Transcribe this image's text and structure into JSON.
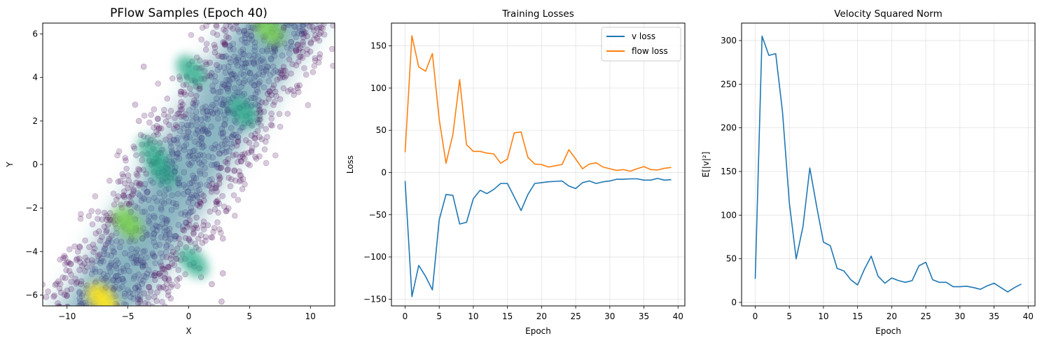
{
  "colors": {
    "blue": "#1f77b4",
    "orange": "#ff7f0e",
    "scatter_low": "#440154",
    "scatter_mid": "#2a788e",
    "scatter_high": "#fde725"
  },
  "chart_data": [
    {
      "type": "scatter",
      "title": "PFlow Samples (Epoch 40)",
      "xlabel": "X",
      "ylabel": "Y",
      "xlim": [
        -12,
        12
      ],
      "ylim": [
        -6.5,
        6.5
      ],
      "xticks": [
        -10,
        -5,
        0,
        5,
        10
      ],
      "yticks": [
        -6,
        -4,
        -2,
        0,
        2,
        4,
        6
      ],
      "grid": false,
      "colormap": "viridis (density)",
      "band": {
        "slope": 0.909,
        "intercept_y": 0,
        "half_width_y": 5.5
      },
      "hotspots": [
        {
          "x": -7.1,
          "y": -6.2,
          "level": 1.0
        },
        {
          "x": -5.0,
          "y": -2.7,
          "level": 0.85
        },
        {
          "x": 6.6,
          "y": 6.2,
          "level": 0.7
        },
        {
          "x": 0.2,
          "y": 4.3,
          "level": 0.55
        },
        {
          "x": 0.4,
          "y": -4.5,
          "level": 0.5
        },
        {
          "x": 4.5,
          "y": 2.4,
          "level": 0.45
        },
        {
          "x": -2.2,
          "y": -0.3,
          "level": 0.4
        },
        {
          "x": -3.0,
          "y": 0.6,
          "level": 0.35
        }
      ],
      "outliers": [
        {
          "x": -3.7,
          "y": 4.5
        },
        {
          "x": -4.4,
          "y": 2.75
        },
        {
          "x": -4.1,
          "y": 2.0
        },
        {
          "x": 2.7,
          "y": -6.3
        },
        {
          "x": 2.8,
          "y": -5.0
        },
        {
          "x": 1.9,
          "y": -5.5
        },
        {
          "x": 6.8,
          "y": 3.2
        },
        {
          "x": 2.8,
          "y": -3.4
        },
        {
          "x": 7.8,
          "y": 6.3
        }
      ]
    },
    {
      "type": "line",
      "title": "Training Losses",
      "xlabel": "Epoch",
      "ylabel": "Loss",
      "xlim": [
        -2,
        41
      ],
      "ylim": [
        -158,
        177
      ],
      "xticks": [
        0,
        5,
        10,
        15,
        20,
        25,
        30,
        35,
        40
      ],
      "yticks": [
        -150,
        -100,
        -50,
        0,
        50,
        100,
        150
      ],
      "grid": true,
      "legend": "top-right",
      "x": [
        0,
        1,
        2,
        3,
        4,
        5,
        6,
        7,
        8,
        9,
        10,
        11,
        12,
        13,
        14,
        15,
        16,
        17,
        18,
        19,
        20,
        21,
        22,
        23,
        24,
        25,
        26,
        27,
        28,
        29,
        30,
        31,
        32,
        33,
        34,
        35,
        36,
        37,
        38,
        39
      ],
      "series": [
        {
          "name": "v loss",
          "color": "#1f77b4",
          "values": [
            -10,
            -147,
            -110,
            -123,
            -139,
            -56,
            -26,
            -27,
            -61,
            -59,
            -31,
            -21,
            -25,
            -20,
            -13,
            -13,
            -29,
            -45,
            -26,
            -13,
            -12,
            -11,
            -10.5,
            -10,
            -16,
            -19,
            -12,
            -10,
            -13,
            -11,
            -10,
            -8,
            -8,
            -7.5,
            -7.5,
            -9,
            -9,
            -7,
            -9,
            -8.5
          ]
        },
        {
          "name": "flow loss",
          "color": "#ff7f0e",
          "values": [
            24,
            162,
            125,
            120,
            141,
            63,
            11,
            45,
            110,
            33,
            25,
            25,
            23,
            22,
            11,
            16,
            47,
            48,
            18,
            10,
            9.5,
            6.5,
            8,
            9.5,
            27,
            16,
            4.5,
            10,
            11.5,
            6.5,
            4.5,
            2.5,
            3.5,
            1.5,
            4.5,
            7,
            3.5,
            3,
            5,
            6
          ]
        }
      ]
    },
    {
      "type": "line",
      "title": "Velocity Squared Norm",
      "xlabel": "Epoch",
      "ylabel": "E[|v|²]",
      "xlim": [
        -2,
        41
      ],
      "ylim": [
        -4,
        320
      ],
      "xticks": [
        0,
        5,
        10,
        15,
        20,
        25,
        30,
        35,
        40
      ],
      "yticks": [
        0,
        50,
        100,
        150,
        200,
        250,
        300
      ],
      "grid": true,
      "x": [
        0,
        1,
        2,
        3,
        4,
        5,
        6,
        7,
        8,
        9,
        10,
        11,
        12,
        13,
        14,
        15,
        16,
        17,
        18,
        19,
        20,
        21,
        22,
        23,
        24,
        25,
        26,
        27,
        28,
        29,
        30,
        31,
        32,
        33,
        34,
        35,
        36,
        37,
        38,
        39
      ],
      "series": [
        {
          "color": "#1f77b4",
          "values": [
            27,
            305,
            283,
            285,
            218,
            114,
            50,
            87,
            154,
            110,
            69,
            65,
            39,
            36,
            26,
            20,
            38,
            53,
            30,
            22,
            28,
            25,
            23,
            25,
            42,
            46,
            26,
            23,
            23,
            18,
            18,
            18.5,
            17,
            15,
            19,
            22,
            17,
            12,
            17,
            21
          ]
        }
      ]
    }
  ]
}
